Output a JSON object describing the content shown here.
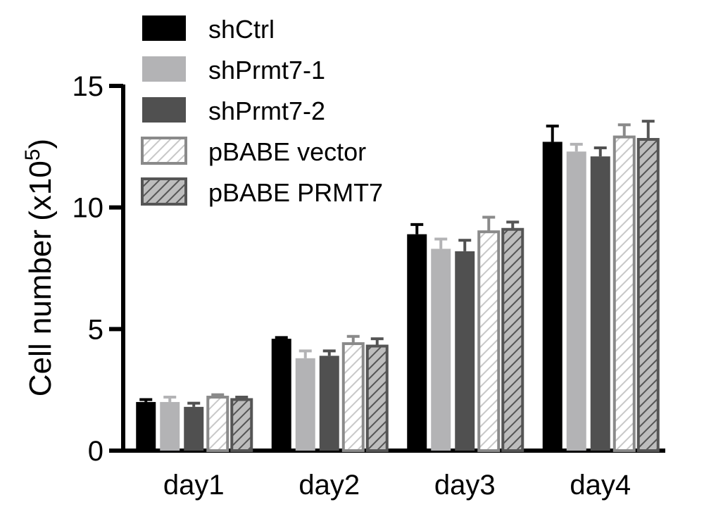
{
  "chart_data": {
    "type": "bar",
    "title": "",
    "xlabel": "",
    "ylabel": "Cell number (x10",
    "ylabel_superscript": "5",
    "ylabel_close": ")",
    "ylim": [
      0,
      15
    ],
    "yticks": [
      0,
      5,
      10,
      15
    ],
    "ytick_labels": [
      "0",
      "5",
      "10",
      "15"
    ],
    "categories": [
      "day1",
      "day2",
      "day3",
      "day4"
    ],
    "legend_position": "top-left",
    "grid": false,
    "series": [
      {
        "name": "shCtrl",
        "color": "#000000",
        "pattern": "solid",
        "values": [
          2.0,
          4.6,
          8.9,
          12.7
        ],
        "errors": [
          0.1,
          0.05,
          0.4,
          0.65
        ]
      },
      {
        "name": "shPrmt7-1",
        "color": "#b3b3b5",
        "pattern": "solid",
        "values": [
          2.0,
          3.8,
          8.3,
          12.3
        ],
        "errors": [
          0.2,
          0.3,
          0.4,
          0.3
        ]
      },
      {
        "name": "shPrmt7-2",
        "color": "#505050",
        "pattern": "solid",
        "values": [
          1.8,
          3.9,
          8.2,
          12.1
        ],
        "errors": [
          0.15,
          0.2,
          0.45,
          0.35
        ]
      },
      {
        "name": "pBABE vector",
        "color": "#8a8a8a",
        "pattern": "hatch-light",
        "values": [
          2.2,
          4.4,
          9.0,
          12.9
        ],
        "errors": [
          0.1,
          0.3,
          0.6,
          0.5
        ]
      },
      {
        "name": "pBABE PRMT7",
        "color": "#555555",
        "pattern": "hatch-dark",
        "values": [
          2.1,
          4.3,
          9.1,
          12.8
        ],
        "errors": [
          0.1,
          0.3,
          0.3,
          0.75
        ]
      }
    ]
  }
}
